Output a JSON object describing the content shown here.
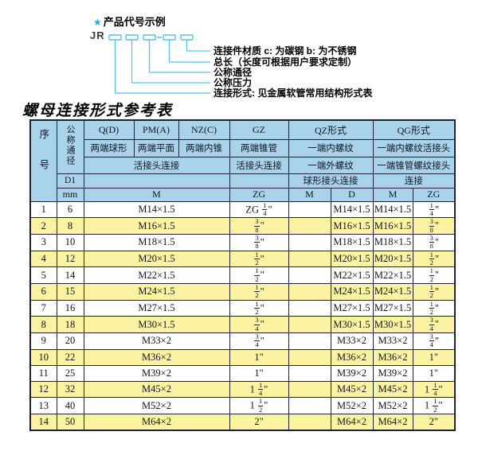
{
  "colors": {
    "accent": "#56c3e6",
    "star": "#2aa9da",
    "header_bg": "#a9d3eb",
    "stripe": "#fbf3a2",
    "border": "#1c2433"
  },
  "diagram": {
    "star": "★",
    "heading": "产品代号示例",
    "code_prefix": "JR",
    "labels": [
      "连接件材质  c: 为碳钢  b: 为不锈钢",
      "总长（长度可根据用户要求定制）",
      "公称通径",
      "公称压力",
      "连接形式: 见金属软管常用结构形式表"
    ]
  },
  "title": "螺母连接形式参考表",
  "table": {
    "header": {
      "seq": "序号",
      "dn": "公称通径",
      "d1": "D1",
      "mm": "mm",
      "forms": [
        "Q(D)",
        "PM(A)",
        "NZ(C)",
        "GZ",
        "QZ形式",
        "QG形式"
      ],
      "ends": [
        "两端球形",
        "两端平面",
        "两端内锥",
        "两端锥管",
        "一端内螺纹",
        "一端内螺纹活接头"
      ],
      "row3": [
        "活接头连接",
        "活接头连接",
        "一端外螺纹",
        "一端锥管螺纹接头"
      ],
      "row4": [
        "球形接头连接",
        "连接"
      ],
      "row5": [
        "M",
        "ZG",
        "M",
        "D",
        "M",
        "ZG"
      ]
    },
    "rows": [
      {
        "seq": "1",
        "dn": "6",
        "m": "M14×1.5",
        "gz": "ZG 1/4\"",
        "qz_m": "",
        "qz_d": "M14×1.5",
        "qg_m": "M14×1.5",
        "qg_zg": "1/4\""
      },
      {
        "seq": "2",
        "dn": "8",
        "m": "M16×1.5",
        "gz": "3/8\"",
        "qz_m": "",
        "qz_d": "M16×1.5",
        "qg_m": "M16×1.5",
        "qg_zg": "3/8\""
      },
      {
        "seq": "3",
        "dn": "10",
        "m": "M18×1.5",
        "gz": "3/8\"",
        "qz_m": "",
        "qz_d": "M18×1.5",
        "qg_m": "M18×1.5",
        "qg_zg": "3/8\""
      },
      {
        "seq": "4",
        "dn": "12",
        "m": "M20×1.5",
        "gz": "1/2\"",
        "qz_m": "",
        "qz_d": "M20×1.5",
        "qg_m": "M20×1.5",
        "qg_zg": "1/2\""
      },
      {
        "seq": "5",
        "dn": "14",
        "m": "M22×1.5",
        "gz": "1/2\"",
        "qz_m": "",
        "qz_d": "M22×1.5",
        "qg_m": "M22×1.5",
        "qg_zg": "1/2\""
      },
      {
        "seq": "6",
        "dn": "15",
        "m": "M24×1.5",
        "gz": "1/2\"",
        "qz_m": "",
        "qz_d": "M24×1.5",
        "qg_m": "M24×1.5",
        "qg_zg": "1/2\""
      },
      {
        "seq": "7",
        "dn": "16",
        "m": "M27×1.5",
        "gz": "1/2\"",
        "qz_m": "",
        "qz_d": "M27×1.5",
        "qg_m": "M27×1.5",
        "qg_zg": "1/2\""
      },
      {
        "seq": "8",
        "dn": "18",
        "m": "M30×1.5",
        "gz": "3/4\"",
        "qz_m": "",
        "qz_d": "M30×1.5",
        "qg_m": "M30×1.5",
        "qg_zg": "3/4\""
      },
      {
        "seq": "9",
        "dn": "20",
        "m": "M33×2",
        "gz": "3/4\"",
        "qz_m": "",
        "qz_d": "M33×2",
        "qg_m": "M33×2",
        "qg_zg": "3/4\""
      },
      {
        "seq": "10",
        "dn": "22",
        "m": "M36×2",
        "gz": "1\"",
        "qz_m": "",
        "qz_d": "M36×2",
        "qg_m": "M36×2",
        "qg_zg": "1\""
      },
      {
        "seq": "11",
        "dn": "25",
        "m": "M39×2",
        "gz": "1\"",
        "qz_m": "",
        "qz_d": "M39×2",
        "qg_m": "M39×2",
        "qg_zg": "1\""
      },
      {
        "seq": "12",
        "dn": "32",
        "m": "M45×2",
        "gz": "1 1/4\"",
        "qz_m": "",
        "qz_d": "M45×2",
        "qg_m": "M45×2",
        "qg_zg": "1 1/4\""
      },
      {
        "seq": "13",
        "dn": "40",
        "m": "M52×2",
        "gz": "1 1/2\"",
        "qz_m": "",
        "qz_d": "M52×2",
        "qg_m": "M52×2",
        "qg_zg": "1 1/2\""
      },
      {
        "seq": "14",
        "dn": "50",
        "m": "M64×2",
        "gz": "2\"",
        "qz_m": "",
        "qz_d": "M64×2",
        "qg_m": "M64×2",
        "qg_zg": "2\""
      }
    ]
  }
}
